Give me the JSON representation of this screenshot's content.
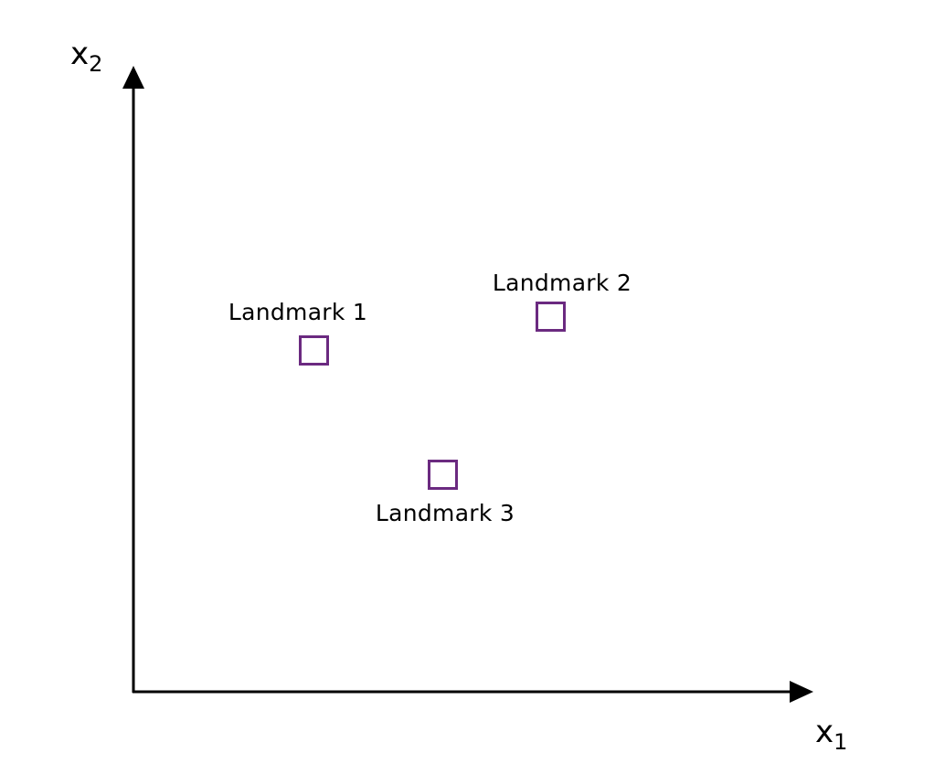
{
  "axes": {
    "x_label": "x",
    "x_subscript": "1",
    "y_label": "x",
    "y_subscript": "2"
  },
  "landmarks": [
    {
      "label": "Landmark 1"
    },
    {
      "label": "Landmark 2"
    },
    {
      "label": "Landmark 3"
    }
  ],
  "colors": {
    "landmark_stroke": "#6b2a80",
    "axis": "#000000"
  }
}
